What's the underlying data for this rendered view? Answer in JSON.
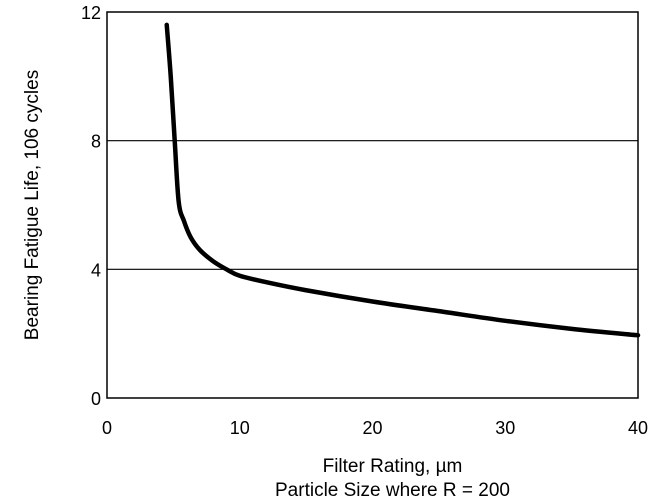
{
  "chart_data": {
    "type": "line",
    "title": "",
    "xlabel": "Filter Rating, µm",
    "xlabel_line2": "Particle Size where R = 200",
    "ylabel": "Bearing Fatigue Life, 106 cycles",
    "xlim": [
      0,
      40
    ],
    "ylim": [
      0,
      12
    ],
    "x_ticks": [
      0,
      10,
      20,
      30,
      40
    ],
    "y_ticks": [
      0,
      4,
      8,
      12
    ],
    "x_tick_labels": [
      "0",
      "10",
      "20",
      "30",
      "40"
    ],
    "y_tick_labels": [
      "0",
      "4",
      "8",
      "12"
    ],
    "grid": "horizontal lines at 4 and 8",
    "series": [
      {
        "color": "#000000",
        "x": [
          4.5,
          4.8,
          5.1,
          5.4,
          5.8,
          6.3,
          7.0,
          8.0,
          9.0,
          10.0,
          12.0,
          15.0,
          20.0,
          25.0,
          30.0,
          35.0,
          40.0
        ],
        "y": [
          11.6,
          10.0,
          8.0,
          6.1,
          5.5,
          5.0,
          4.6,
          4.25,
          4.0,
          3.8,
          3.6,
          3.35,
          3.0,
          2.7,
          2.4,
          2.15,
          1.95
        ]
      }
    ]
  }
}
